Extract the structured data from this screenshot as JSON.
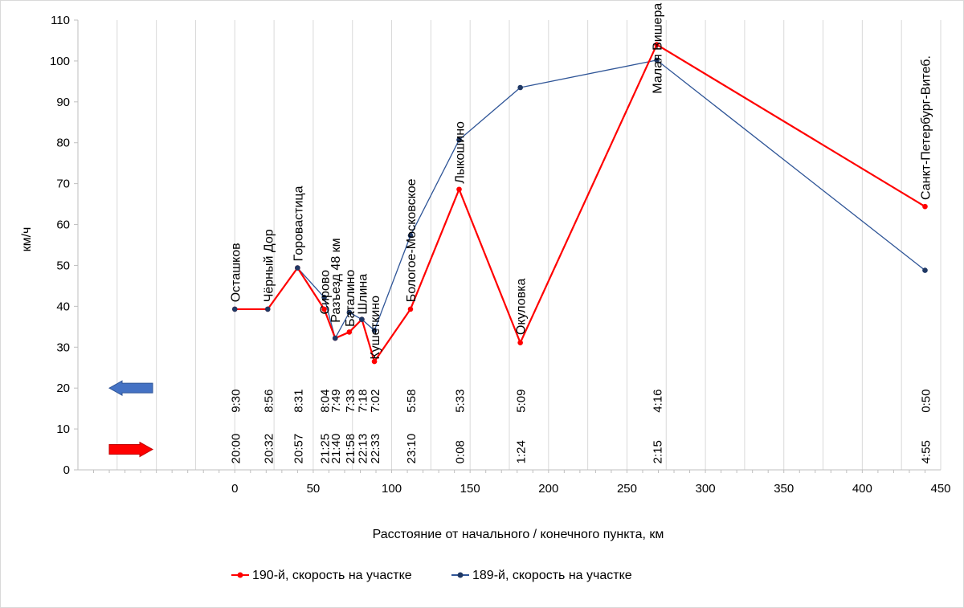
{
  "chart_data": {
    "type": "line",
    "title": "",
    "xlabel": "Расстояние от начального / конечного пункта, км",
    "ylabel": "км/ч",
    "xlim": [
      -100,
      450
    ],
    "ylim": [
      0,
      110
    ],
    "x_ticks": [
      0,
      50,
      100,
      150,
      200,
      250,
      300,
      350,
      400,
      450
    ],
    "y_ticks": [
      0,
      10,
      20,
      30,
      40,
      50,
      60,
      70,
      80,
      90,
      100,
      110
    ],
    "grid": "vertical",
    "series": [
      {
        "name": "190-й, скорость на участке",
        "color": "#ff0000",
        "x": [
          0,
          21,
          40,
          57,
          64,
          73,
          81,
          89,
          112,
          143,
          182,
          269,
          440
        ],
        "y": [
          39.3,
          39.3,
          49.4,
          39.3,
          32.2,
          33.7,
          36.8,
          26.5,
          39.3,
          68.6,
          31.1,
          104,
          64.4
        ]
      },
      {
        "name": "189-й, скорость на участке",
        "color": "#2f5597",
        "x": [
          0,
          21,
          40,
          57,
          64,
          73,
          81,
          89,
          112,
          143,
          182,
          269,
          440
        ],
        "y": [
          39.3,
          39.3,
          49.4,
          42.2,
          32.2,
          38.5,
          36.8,
          34.1,
          57.3,
          80.7,
          93.5,
          100.2,
          48.8
        ]
      }
    ],
    "stations": [
      {
        "name": "Осташков",
        "x": 0,
        "label_y": 41
      },
      {
        "name": "Чёрный Дор",
        "x": 21,
        "label_y": 41
      },
      {
        "name": "Горовастица",
        "x": 40,
        "label_y": 51
      },
      {
        "name": "Сирово",
        "x": 57,
        "label_y": 38
      },
      {
        "name": "Разъезд 48 км",
        "x": 64,
        "label_y": 36
      },
      {
        "name": "Баталино",
        "x": 73,
        "label_y": 35
      },
      {
        "name": "Шлина",
        "x": 81,
        "label_y": 38
      },
      {
        "name": "Кушеткино",
        "x": 89,
        "label_y": 27
      },
      {
        "name": "Бологое-Московское",
        "x": 112,
        "label_y": 41
      },
      {
        "name": "Лыкошино",
        "x": 143,
        "label_y": 70
      },
      {
        "name": "Окуловка",
        "x": 182,
        "label_y": 33
      },
      {
        "name": "Малая Вишера",
        "x": 269,
        "label_y": 92
      },
      {
        "name": "Санкт-Петербург-Витеб.",
        "x": 440,
        "label_y": 66
      }
    ],
    "times_backward": [
      "9:30",
      "8:56",
      "8:31",
      "8:04",
      "7:49",
      "7:33",
      "7:18",
      "7:02",
      "5:58",
      "5:33",
      "5:09",
      "4:16",
      "0:50"
    ],
    "times_forward": [
      "20:00",
      "20:32",
      "20:57",
      "21:25",
      "21:40",
      "21:58",
      "22:13",
      "22:33",
      "23:10",
      "0:08",
      "1:24",
      "2:15",
      "4:55"
    ],
    "arrows": [
      {
        "name": "backward",
        "direction": "left",
        "color": "#4472c4",
        "y_value": 20
      },
      {
        "name": "forward",
        "direction": "right",
        "color": "#ff0000",
        "y_value": 5
      }
    ]
  }
}
